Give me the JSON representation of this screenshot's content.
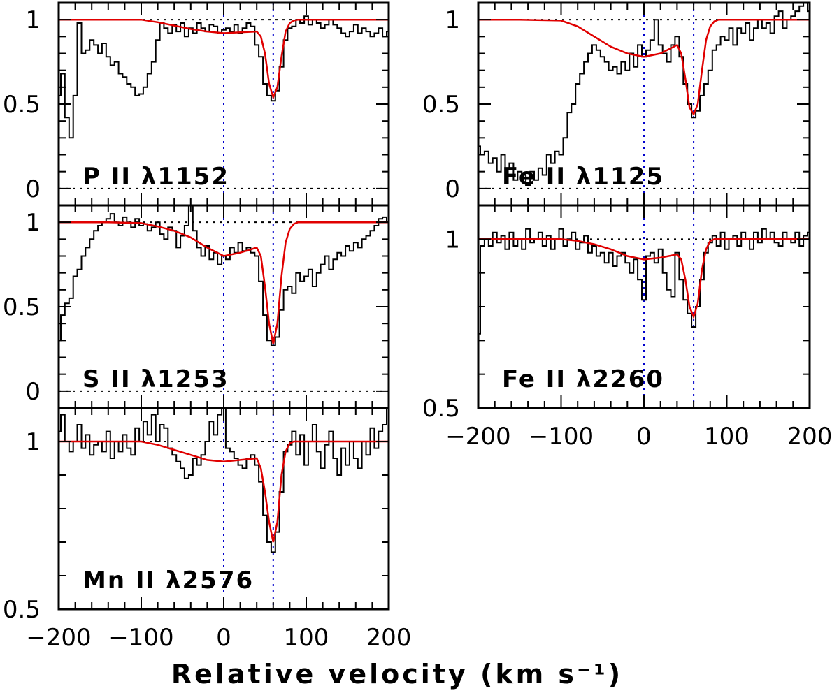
{
  "xlabel": "Relative velocity (km s⁻¹)",
  "colors": {
    "spectrum": "#000000",
    "model": "#e00000",
    "component": "#0000cc",
    "frame": "#000000"
  },
  "chart_data": [
    {
      "type": "line",
      "label": "P II λ1152",
      "xlim": [
        -200,
        200
      ],
      "ylim": [
        -0.1,
        1.1
      ],
      "x_ticks": [],
      "y_ticks": [
        "0",
        "0.5",
        "1"
      ],
      "components": [
        0,
        60
      ],
      "spectrum": {
        "x": [
          -200,
          -195,
          -190,
          -185,
          -180,
          -175,
          -170,
          -165,
          -160,
          -155,
          -150,
          -145,
          -140,
          -135,
          -130,
          -125,
          -120,
          -115,
          -110,
          -105,
          -100,
          -95,
          -90,
          -85,
          -80,
          -75,
          -70,
          -65,
          -60,
          -55,
          -50,
          -45,
          -40,
          -35,
          -30,
          -25,
          -20,
          -15,
          -10,
          -5,
          0,
          5,
          10,
          15,
          20,
          25,
          30,
          35,
          40,
          45,
          50,
          55,
          60,
          65,
          70,
          75,
          80,
          85,
          90,
          95,
          100,
          105,
          110,
          115,
          120,
          125,
          130,
          135,
          140,
          145,
          150,
          155,
          160,
          165,
          170,
          175,
          180,
          185,
          190,
          195,
          200
        ],
        "y": [
          0.55,
          0.68,
          0.42,
          0.3,
          0.55,
          0.98,
          0.8,
          0.82,
          0.88,
          0.85,
          0.8,
          0.86,
          0.78,
          0.73,
          0.75,
          0.68,
          0.66,
          0.62,
          0.6,
          0.55,
          0.56,
          0.6,
          0.68,
          0.75,
          0.88,
          0.98,
          0.95,
          0.92,
          0.97,
          0.93,
          0.98,
          0.9,
          0.95,
          0.92,
          0.98,
          0.95,
          0.93,
          0.97,
          0.96,
          0.92,
          0.94,
          0.95,
          0.93,
          0.97,
          0.92,
          0.95,
          0.98,
          0.96,
          0.85,
          0.78,
          0.62,
          0.55,
          0.52,
          0.58,
          0.72,
          0.88,
          0.95,
          0.96,
          1.0,
          0.98,
          1.02,
          0.97,
          1.0,
          0.98,
          0.95,
          0.97,
          1.0,
          0.97,
          0.95,
          0.92,
          0.9,
          0.93,
          0.97,
          0.92,
          0.95,
          0.93,
          0.9,
          0.92,
          0.95,
          0.9,
          0.93
        ]
      },
      "model": {
        "x": [
          -200,
          -170,
          -100,
          -80,
          -60,
          -40,
          -20,
          0,
          20,
          40,
          45,
          50,
          55,
          60,
          65,
          70,
          75,
          80,
          85,
          90,
          100,
          200
        ],
        "y": [
          1.0,
          1.0,
          1.0,
          0.985,
          0.965,
          0.945,
          0.93,
          0.92,
          0.925,
          0.93,
          0.9,
          0.8,
          0.62,
          0.54,
          0.6,
          0.78,
          0.93,
          0.98,
          0.995,
          1.0,
          1.0,
          1.0
        ]
      }
    },
    {
      "type": "line",
      "label": "S II λ1253",
      "xlim": [
        -200,
        200
      ],
      "ylim": [
        -0.1,
        1.1
      ],
      "x_ticks": [],
      "y_ticks": [
        "0",
        "0.5",
        "1"
      ],
      "components": [
        0,
        60
      ],
      "spectrum": {
        "x": [
          -200,
          -195,
          -190,
          -185,
          -180,
          -175,
          -170,
          -165,
          -160,
          -155,
          -150,
          -145,
          -140,
          -135,
          -130,
          -125,
          -120,
          -115,
          -110,
          -105,
          -100,
          -95,
          -90,
          -85,
          -80,
          -75,
          -70,
          -65,
          -60,
          -55,
          -50,
          -45,
          -40,
          -35,
          -30,
          -25,
          -20,
          -15,
          -10,
          -5,
          0,
          5,
          10,
          15,
          20,
          25,
          30,
          35,
          40,
          45,
          50,
          55,
          60,
          65,
          70,
          75,
          80,
          85,
          90,
          95,
          100,
          105,
          110,
          115,
          120,
          125,
          130,
          135,
          140,
          145,
          150,
          155,
          160,
          165,
          170,
          175,
          180,
          185,
          190,
          195,
          200
        ],
        "y": [
          0.3,
          0.45,
          0.52,
          0.55,
          0.68,
          0.72,
          0.8,
          0.85,
          0.9,
          0.95,
          0.98,
          1.0,
          1.02,
          1.05,
          1.0,
          0.98,
          1.03,
          1.0,
          0.97,
          1.02,
          0.98,
          0.99,
          0.95,
          0.97,
          1.0,
          0.93,
          0.9,
          0.97,
          0.95,
          0.85,
          0.92,
          0.98,
          1.1,
          0.95,
          0.85,
          0.8,
          0.86,
          0.78,
          0.82,
          0.75,
          0.8,
          0.78,
          0.85,
          0.82,
          0.88,
          0.83,
          0.85,
          0.82,
          0.8,
          0.65,
          0.45,
          0.3,
          0.27,
          0.32,
          0.48,
          0.6,
          0.62,
          0.58,
          0.7,
          0.65,
          0.68,
          0.72,
          0.62,
          0.7,
          0.75,
          0.8,
          0.72,
          0.78,
          0.82,
          0.8,
          0.86,
          0.83,
          0.88,
          0.85,
          0.9,
          0.92,
          0.95,
          0.98,
          1.02,
          1.03,
          1.0
        ]
      },
      "model": {
        "x": [
          -200,
          -140,
          -100,
          -80,
          -60,
          -40,
          -20,
          0,
          20,
          40,
          45,
          50,
          55,
          60,
          65,
          70,
          75,
          80,
          85,
          90,
          100,
          200
        ],
        "y": [
          1.0,
          1.0,
          0.995,
          0.975,
          0.95,
          0.91,
          0.85,
          0.8,
          0.82,
          0.85,
          0.8,
          0.62,
          0.4,
          0.28,
          0.4,
          0.68,
          0.88,
          0.96,
          0.99,
          1.0,
          1.0,
          1.0
        ]
      }
    },
    {
      "type": "line",
      "label": "Mn II λ2576",
      "xlim": [
        -200,
        200
      ],
      "ylim": [
        0.5,
        1.1
      ],
      "x_ticks": [
        "−200",
        "−100",
        "0",
        "100",
        "200"
      ],
      "y_ticks": [
        "0.5",
        "1"
      ],
      "components": [
        0,
        60
      ],
      "spectrum": {
        "x": [
          -200,
          -195,
          -190,
          -185,
          -180,
          -175,
          -170,
          -165,
          -160,
          -155,
          -150,
          -145,
          -140,
          -135,
          -130,
          -125,
          -120,
          -115,
          -110,
          -105,
          -100,
          -95,
          -90,
          -85,
          -80,
          -75,
          -70,
          -65,
          -60,
          -55,
          -50,
          -45,
          -40,
          -35,
          -30,
          -25,
          -20,
          -15,
          -10,
          -5,
          0,
          5,
          10,
          15,
          20,
          25,
          30,
          35,
          40,
          45,
          50,
          55,
          60,
          65,
          70,
          75,
          80,
          85,
          90,
          95,
          100,
          105,
          110,
          115,
          120,
          125,
          130,
          135,
          140,
          145,
          150,
          155,
          160,
          165,
          170,
          175,
          180,
          185,
          190,
          195,
          200
        ],
        "y": [
          1.03,
          1.08,
          1.0,
          0.97,
          1.0,
          1.05,
          0.98,
          1.02,
          0.96,
          0.99,
          1.0,
          0.97,
          1.03,
          0.95,
          1.0,
          0.97,
          1.02,
          0.98,
          0.96,
          1.04,
          1.0,
          1.06,
          1.02,
          1.08,
          1.0,
          1.05,
          1.04,
          0.98,
          0.96,
          0.94,
          0.92,
          0.89,
          0.9,
          0.95,
          0.93,
          0.96,
          1.0,
          1.06,
          1.02,
          1.08,
          1.1,
          0.98,
          0.97,
          0.95,
          0.93,
          0.92,
          0.95,
          0.96,
          0.93,
          0.88,
          0.78,
          0.7,
          0.67,
          0.73,
          0.85,
          0.97,
          0.99,
          1.03,
          0.96,
          1.02,
          0.93,
          1.0,
          1.05,
          0.97,
          0.92,
          0.99,
          1.03,
          0.95,
          0.9,
          0.98,
          0.93,
          1.0,
          0.95,
          0.92,
          1.0,
          0.96,
          1.04,
          0.98,
          1.03,
          1.05,
          1.1
        ]
      },
      "model": {
        "x": [
          -200,
          -150,
          -100,
          -80,
          -60,
          -40,
          -20,
          0,
          20,
          40,
          45,
          50,
          55,
          60,
          65,
          70,
          75,
          80,
          85,
          90,
          100,
          200
        ],
        "y": [
          1.0,
          1.0,
          1.0,
          0.99,
          0.975,
          0.96,
          0.945,
          0.94,
          0.945,
          0.95,
          0.92,
          0.85,
          0.76,
          0.7,
          0.76,
          0.9,
          0.97,
          0.995,
          1.0,
          1.0,
          1.0,
          1.0
        ]
      }
    },
    {
      "type": "line",
      "label": "Fe II λ1125",
      "xlim": [
        -200,
        200
      ],
      "ylim": [
        -0.1,
        1.1
      ],
      "x_ticks": [],
      "y_ticks": [
        "0",
        "0.5",
        "1"
      ],
      "components": [
        0,
        60
      ],
      "spectrum": {
        "x": [
          -200,
          -195,
          -190,
          -185,
          -180,
          -175,
          -170,
          -165,
          -160,
          -155,
          -150,
          -145,
          -140,
          -135,
          -130,
          -125,
          -120,
          -115,
          -110,
          -105,
          -100,
          -95,
          -90,
          -85,
          -80,
          -75,
          -70,
          -65,
          -60,
          -55,
          -50,
          -45,
          -40,
          -35,
          -30,
          -25,
          -20,
          -15,
          -10,
          -5,
          0,
          5,
          10,
          15,
          20,
          25,
          30,
          35,
          40,
          45,
          50,
          55,
          60,
          65,
          70,
          75,
          80,
          85,
          90,
          95,
          100,
          105,
          110,
          115,
          120,
          125,
          130,
          135,
          140,
          145,
          150,
          155,
          160,
          165,
          170,
          175,
          180,
          185,
          190,
          195,
          200
        ],
        "y": [
          0.25,
          0.2,
          0.22,
          0.15,
          0.18,
          0.1,
          0.2,
          0.12,
          0.15,
          0.05,
          0.1,
          0.08,
          0.02,
          0.1,
          0.05,
          0.12,
          0.08,
          0.2,
          0.15,
          0.22,
          0.2,
          0.3,
          0.45,
          0.5,
          0.62,
          0.68,
          0.75,
          0.8,
          0.85,
          0.82,
          0.78,
          0.75,
          0.7,
          0.72,
          0.68,
          0.75,
          0.7,
          0.8,
          0.72,
          0.85,
          0.78,
          0.82,
          0.88,
          1.0,
          0.85,
          0.8,
          0.75,
          0.85,
          0.9,
          0.78,
          0.62,
          0.5,
          0.42,
          0.46,
          0.55,
          0.62,
          0.7,
          0.82,
          0.85,
          0.9,
          0.88,
          0.95,
          0.85,
          0.95,
          0.92,
          0.98,
          0.88,
          0.95,
          1.0,
          0.95,
          0.98,
          0.92,
          1.02,
          1.05,
          0.95,
          1.0,
          1.02,
          1.05,
          1.08,
          1.12,
          1.05
        ]
      },
      "model": {
        "x": [
          -200,
          -150,
          -100,
          -80,
          -60,
          -40,
          -20,
          0,
          20,
          40,
          45,
          50,
          55,
          60,
          65,
          70,
          75,
          80,
          85,
          90,
          100,
          200
        ],
        "y": [
          1.0,
          1.0,
          0.995,
          0.96,
          0.9,
          0.84,
          0.8,
          0.78,
          0.8,
          0.85,
          0.8,
          0.65,
          0.48,
          0.44,
          0.5,
          0.7,
          0.88,
          0.96,
          0.99,
          1.0,
          1.0,
          1.0
        ]
      }
    },
    {
      "type": "line",
      "label": "Fe II λ2260",
      "xlim": [
        -200,
        200
      ],
      "ylim": [
        0.5,
        1.1
      ],
      "x_ticks": [
        "−200",
        "−100",
        "0",
        "100",
        "200"
      ],
      "y_ticks": [
        "0.5",
        "1"
      ],
      "components": [
        0,
        60
      ],
      "spectrum": {
        "x": [
          -200,
          -195,
          -190,
          -185,
          -180,
          -175,
          -170,
          -165,
          -160,
          -155,
          -150,
          -145,
          -140,
          -135,
          -130,
          -125,
          -120,
          -115,
          -110,
          -105,
          -100,
          -95,
          -90,
          -85,
          -80,
          -75,
          -70,
          -65,
          -60,
          -55,
          -50,
          -45,
          -40,
          -35,
          -30,
          -25,
          -20,
          -15,
          -10,
          -5,
          0,
          5,
          10,
          15,
          20,
          25,
          30,
          35,
          40,
          45,
          50,
          55,
          60,
          65,
          70,
          75,
          80,
          85,
          90,
          95,
          100,
          105,
          110,
          115,
          120,
          125,
          130,
          135,
          140,
          145,
          150,
          155,
          160,
          165,
          170,
          175,
          180,
          185,
          190,
          195,
          200
        ],
        "y": [
          0.72,
          0.98,
          1.0,
          0.98,
          1.02,
          0.99,
          1.01,
          0.97,
          1.02,
          0.98,
          1.0,
          0.97,
          1.03,
          0.99,
          1.0,
          1.02,
          0.98,
          1.01,
          0.97,
          1.0,
          1.03,
          0.98,
          1.0,
          1.02,
          0.97,
          0.99,
          1.01,
          0.96,
          0.98,
          0.95,
          0.96,
          0.93,
          0.96,
          0.92,
          0.95,
          0.96,
          0.93,
          0.9,
          0.94,
          0.88,
          0.82,
          0.95,
          0.96,
          0.93,
          0.97,
          0.9,
          0.85,
          0.83,
          0.96,
          0.88,
          0.82,
          0.78,
          0.74,
          0.8,
          0.88,
          0.96,
          0.99,
          1.01,
          0.98,
          1.02,
          0.97,
          1.0,
          1.01,
          0.98,
          1.02,
          1.0,
          0.97,
          1.02,
          0.99,
          1.03,
          1.0,
          1.02,
          0.99,
          0.98,
          1.02,
          1.0,
          0.99,
          1.02,
          0.98,
          1.01,
          1.02
        ]
      },
      "model": {
        "x": [
          -200,
          -150,
          -100,
          -80,
          -60,
          -40,
          -20,
          0,
          20,
          40,
          45,
          50,
          55,
          60,
          65,
          70,
          75,
          80,
          85,
          90,
          100,
          200
        ],
        "y": [
          1.0,
          1.0,
          1.0,
          0.995,
          0.985,
          0.97,
          0.95,
          0.94,
          0.945,
          0.955,
          0.94,
          0.88,
          0.8,
          0.77,
          0.81,
          0.91,
          0.97,
          0.995,
          1.0,
          1.0,
          1.0,
          1.0
        ]
      }
    }
  ]
}
